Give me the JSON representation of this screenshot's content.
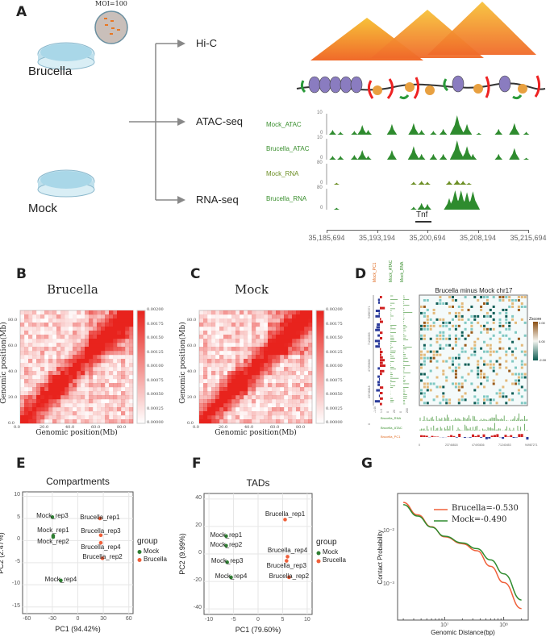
{
  "panels": {
    "a": "A",
    "b": "B",
    "c": "C",
    "d": "D",
    "e": "E",
    "f": "F",
    "g": "G"
  },
  "panel_a": {
    "moi": "MOI=100",
    "brucella": "Brucella",
    "mock": "Mock",
    "assays": [
      "Hi-C",
      "ATAC-seq",
      "RNA-seq"
    ],
    "tracks": [
      {
        "name": "Mock_ATAC",
        "ymax": "10",
        "ymin": "0",
        "color": "#2e8b2e",
        "peaks": [
          [
            0.01,
            0.25
          ],
          [
            0.05,
            0.15
          ],
          [
            0.12,
            0.2
          ],
          [
            0.16,
            0.5
          ],
          [
            0.19,
            0.25
          ],
          [
            0.31,
            0.55
          ],
          [
            0.42,
            0.6
          ],
          [
            0.46,
            0.25
          ],
          [
            0.52,
            0.2
          ],
          [
            0.57,
            0.3
          ],
          [
            0.64,
            1.0
          ],
          [
            0.69,
            0.55
          ],
          [
            0.75,
            0.1
          ],
          [
            0.85,
            0.3
          ],
          [
            0.93,
            0.6
          ],
          [
            0.99,
            0.15
          ]
        ]
      },
      {
        "name": "Brucella_ATAC",
        "ymax": "10",
        "ymin": "0",
        "color": "#2e8b2e",
        "peaks": [
          [
            0.01,
            0.2
          ],
          [
            0.05,
            0.2
          ],
          [
            0.12,
            0.25
          ],
          [
            0.16,
            0.5
          ],
          [
            0.19,
            0.2
          ],
          [
            0.31,
            0.5
          ],
          [
            0.42,
            0.7
          ],
          [
            0.46,
            0.3
          ],
          [
            0.52,
            0.3
          ],
          [
            0.57,
            0.3
          ],
          [
            0.64,
            1.0
          ],
          [
            0.69,
            0.7
          ],
          [
            0.72,
            0.3
          ],
          [
            0.85,
            0.3
          ],
          [
            0.93,
            0.6
          ],
          [
            0.99,
            0.1
          ]
        ]
      },
      {
        "name": "Mock_RNA",
        "ymax": "80",
        "ymin": "0",
        "color": "#6b8e23",
        "peaks": [
          [
            0.03,
            0.1
          ],
          [
            0.42,
            0.15
          ],
          [
            0.46,
            0.2
          ],
          [
            0.49,
            0.15
          ],
          [
            0.6,
            0.2
          ],
          [
            0.64,
            0.25
          ],
          [
            0.67,
            0.2
          ],
          [
            0.7,
            0.1
          ]
        ]
      },
      {
        "name": "Brucella_RNA",
        "ymax": "80",
        "ymin": "0",
        "color": "#2e8b2e",
        "peaks": [
          [
            0.03,
            0.1
          ],
          [
            0.42,
            0.15
          ],
          [
            0.46,
            0.35
          ],
          [
            0.49,
            0.3
          ],
          [
            0.6,
            0.6
          ],
          [
            0.63,
            1.0
          ],
          [
            0.66,
            1.0
          ],
          [
            0.69,
            0.9
          ],
          [
            0.72,
            0.95
          ]
        ]
      }
    ],
    "gene": "Tnf",
    "coords": [
      "35,185,694",
      "35,193,194",
      "35,200,694",
      "35,208,194",
      "35,215,694"
    ]
  },
  "chart_data": [
    {
      "panel": "B",
      "type": "heatmap",
      "title": "Brucella",
      "xlabel": "Genomic position(Mb)",
      "ylabel": "Genomic position(Mb)",
      "xticks": [
        "0.0",
        "20.0",
        "40.0",
        "60.0",
        "80.0"
      ],
      "yticks": [
        "0.0",
        "20.0",
        "40.0",
        "60.0",
        "80.0"
      ],
      "colorbar": [
        "0.00200",
        "0.00175",
        "0.00150",
        "0.00125",
        "0.00100",
        "0.00075",
        "0.00050",
        "0.00025",
        "0.00000"
      ],
      "color": "#e8231d"
    },
    {
      "panel": "C",
      "type": "heatmap",
      "title": "Mock",
      "xlabel": "Genomic position(Mb)",
      "ylabel": "Genomic position(Mb)",
      "xticks": [
        "0.0",
        "20.0",
        "40.0",
        "60.0",
        "80.0"
      ],
      "yticks": [
        "0.0",
        "20.0",
        "40.0",
        "60.0",
        "80.0"
      ],
      "colorbar": [
        "0.00200",
        "0.00175",
        "0.00150",
        "0.00125",
        "0.00100",
        "0.00075",
        "0.00050",
        "0.00025",
        "0.00000"
      ],
      "color": "#e8231d"
    },
    {
      "panel": "D",
      "type": "heatmap",
      "title": "Brucella minus Mock chr17",
      "colorbar_title": "Zscore",
      "colorbar": [
        "2.00",
        "0.00",
        "-2.00"
      ],
      "left_tracks": [
        "Mock_PC1",
        "Mock_ATAC",
        "Mock_RNA"
      ],
      "left_yticks": [
        "94987271",
        "71240453",
        "47493636",
        "23746818",
        "0"
      ],
      "left_xticks": [
        "-1.40",
        "1.0",
        "0",
        "20",
        "0",
        "200"
      ],
      "bottom_tracks": [
        "Brucella_RNA",
        "Brucella_ATAC",
        "Brucella_PC1"
      ],
      "bottom_xticks": [
        "0",
        "23746818",
        "47493636",
        "71240453",
        "94987271"
      ]
    },
    {
      "panel": "E",
      "type": "scatter",
      "title": "Compartments",
      "xlabel": "PC1 (94.42%)",
      "ylabel": "PC2 (2.47%)",
      "xlim": [
        -65,
        65
      ],
      "ylim": [
        -16.5,
        11
      ],
      "xticks": [
        -60,
        -30,
        0,
        30,
        60
      ],
      "yticks": [
        -15,
        -10,
        -5,
        0,
        5,
        10
      ],
      "legend_title": "group",
      "legend": [
        {
          "name": "Mock",
          "color": "#2e7d32"
        },
        {
          "name": "Brucella",
          "color": "#f0603a"
        }
      ],
      "legend_position": "right",
      "points": [
        {
          "label": "Mock_rep3",
          "x": -30,
          "y": 5.3,
          "group": "Mock"
        },
        {
          "label": "Mock_rep1",
          "x": -29,
          "y": 1.1,
          "group": "Mock"
        },
        {
          "label": "Mock_rep2",
          "x": -29,
          "y": 0.8,
          "group": "Mock"
        },
        {
          "label": "Mock_rep4",
          "x": -20,
          "y": -9,
          "group": "Mock"
        },
        {
          "label": "Brucella_rep1",
          "x": 26,
          "y": 5,
          "group": "Brucella"
        },
        {
          "label": "Brucella_rep3",
          "x": 27,
          "y": 1.2,
          "group": "Brucella"
        },
        {
          "label": "Brucella_rep4",
          "x": 27,
          "y": -0.5,
          "group": "Brucella"
        },
        {
          "label": "Brucella_rep2",
          "x": 29,
          "y": -4,
          "group": "Brucella"
        }
      ]
    },
    {
      "panel": "F",
      "type": "scatter",
      "title": "TADs",
      "xlabel": "PC1 (79.60%)",
      "ylabel": "PC2 (9.99%)",
      "xlim": [
        -11,
        11
      ],
      "ylim": [
        -44,
        44
      ],
      "xticks": [
        -10,
        -5,
        0,
        5,
        10
      ],
      "yticks": [
        -40,
        -20,
        0,
        20,
        40
      ],
      "legend_title": "group",
      "legend": [
        {
          "name": "Mock",
          "color": "#2e7d32"
        },
        {
          "name": "Brucella",
          "color": "#f0603a"
        }
      ],
      "legend_position": "right",
      "points": [
        {
          "label": "Mock_rep1",
          "x": -6.5,
          "y": 13,
          "group": "Mock"
        },
        {
          "label": "Mock_rep2",
          "x": -6.5,
          "y": 6,
          "group": "Mock"
        },
        {
          "label": "Mock_rep3",
          "x": -6.3,
          "y": -6,
          "group": "Mock"
        },
        {
          "label": "Mock_rep4",
          "x": -5.5,
          "y": -17,
          "group": "Mock"
        },
        {
          "label": "Brucella_rep1",
          "x": 5.5,
          "y": 25,
          "group": "Brucella"
        },
        {
          "label": "Brucella_rep4",
          "x": 6,
          "y": -2,
          "group": "Brucella"
        },
        {
          "label": "Brucella_rep3",
          "x": 5.8,
          "y": -5,
          "group": "Brucella"
        },
        {
          "label": "Brucella_rep2",
          "x": 6.3,
          "y": -17,
          "group": "Brucella"
        }
      ]
    },
    {
      "panel": "G",
      "type": "line",
      "xlabel": "Genomic Distance(bp)",
      "ylabel": "Contact Probability",
      "xscale": "log",
      "yscale": "log",
      "xlim": [
        1600000.0,
        260000000.0
      ],
      "ylim": [
        0.00022,
        0.05
      ],
      "xticks": [
        {
          "v": 10000000.0,
          "label": "10⁷"
        },
        {
          "v": 100000000.0,
          "label": "10⁸"
        }
      ],
      "yticks": [
        {
          "v": 0.01,
          "label": "10⁻²"
        },
        {
          "v": 0.001,
          "label": "10⁻³"
        }
      ],
      "legend_position": "top-right",
      "x": [
        2000000.0,
        3500000.0,
        6000000.0,
        10000000.0,
        20000000.0,
        35000000.0,
        60000000.0,
        100000000.0,
        200000000.0
      ],
      "series": [
        {
          "name": "Brucella=-0.530",
          "color": "#f0603a",
          "values": [
            0.034,
            0.02,
            0.012,
            0.0078,
            0.0058,
            0.0043,
            0.0022,
            0.0011,
            0.00036
          ]
        },
        {
          "name": "Mock=-0.490",
          "color": "#2e8b2e",
          "values": [
            0.031,
            0.019,
            0.0118,
            0.008,
            0.006,
            0.0047,
            0.0029,
            0.0016,
            0.00052
          ]
        }
      ]
    }
  ]
}
